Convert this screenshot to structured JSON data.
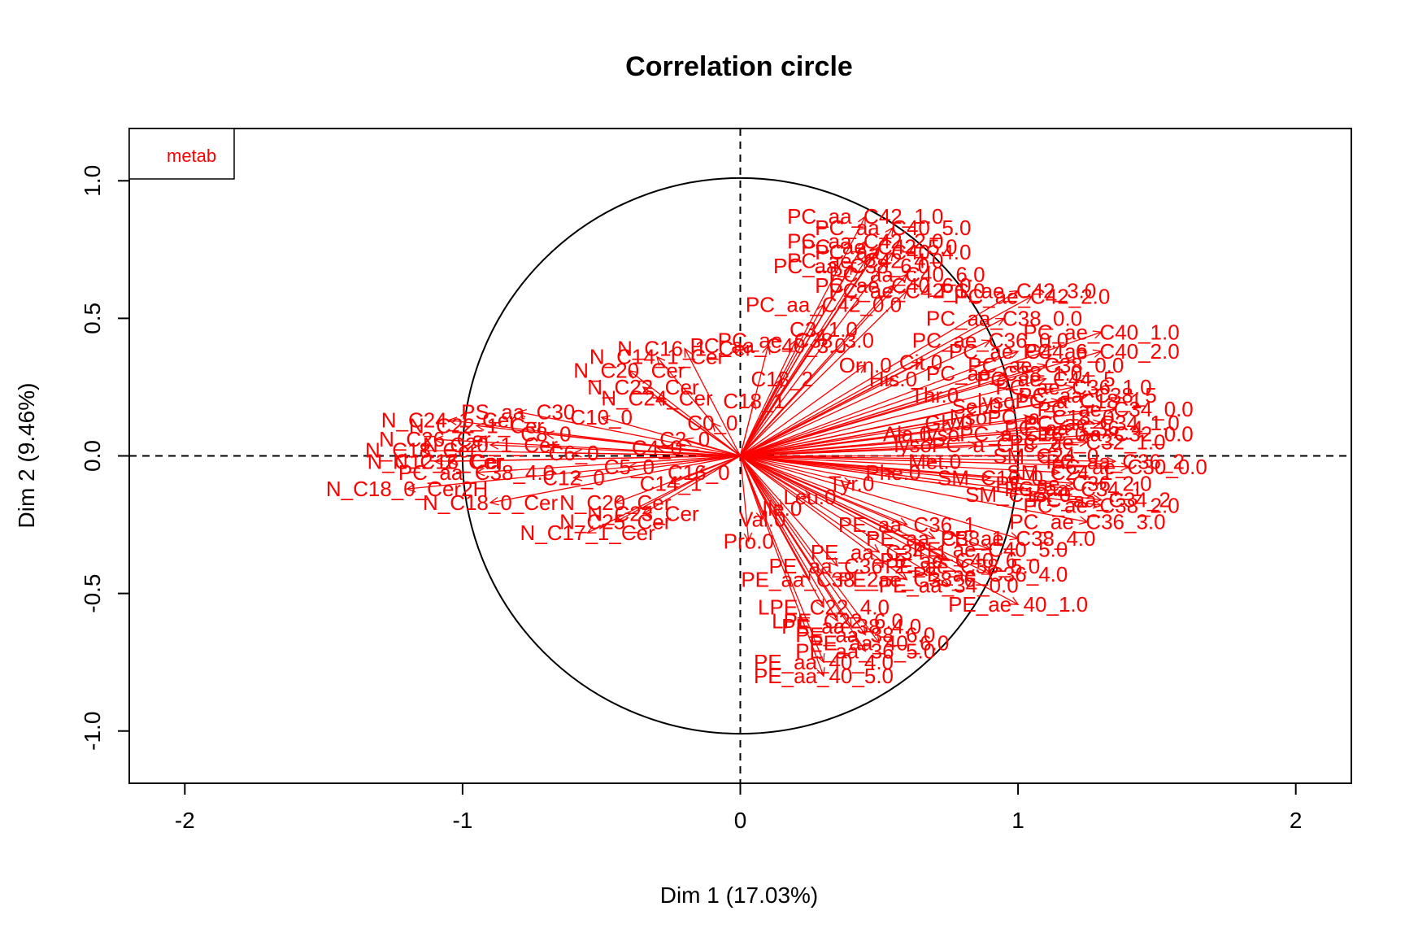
{
  "chart_data": {
    "type": "scatter",
    "title": "Correlation circle",
    "xlabel": "Dim 1 (17.03%)",
    "ylabel": "Dim 2 (9.46%)",
    "xlim": [
      -2.2,
      2.2
    ],
    "ylim": [
      -1.19,
      1.19
    ],
    "xticks": [
      "-2",
      "-1",
      "0",
      "1",
      "2"
    ],
    "yticks": [
      "-1.0",
      "-0.5",
      "0.0",
      "0.5",
      "1.0"
    ],
    "unit_circle": true,
    "reference_lines": [
      0,
      0
    ],
    "legend": {
      "position": "top-left",
      "entries": [
        {
          "name": "metab",
          "color": "#ff0000"
        }
      ]
    },
    "series": [
      {
        "name": "metab",
        "color": "#ff0000",
        "points": [
          {
            "label": "PC_aa_C42_1.0",
            "x": 0.45,
            "y": 0.87
          },
          {
            "label": "PC_aa_C40_5.0",
            "x": 0.55,
            "y": 0.83
          },
          {
            "label": "PC_aa_C42_2.0",
            "x": 0.45,
            "y": 0.78
          },
          {
            "label": "PC_ae_C42_5.0",
            "x": 0.5,
            "y": 0.76
          },
          {
            "label": "PC_aa_C40_4.0",
            "x": 0.55,
            "y": 0.74
          },
          {
            "label": "PC_ae_C42_4.0",
            "x": 0.45,
            "y": 0.71
          },
          {
            "label": "PC_aa_C38_6.0",
            "x": 0.4,
            "y": 0.69
          },
          {
            "label": "PC_aa_C40_6.0",
            "x": 0.6,
            "y": 0.66
          },
          {
            "label": "PC_ae_C40_6.0",
            "x": 0.55,
            "y": 0.62
          },
          {
            "label": "PC_ae_C42_1.0",
            "x": 0.6,
            "y": 0.6
          },
          {
            "label": "PC_aa_C42_0.0",
            "x": 0.3,
            "y": 0.55
          },
          {
            "label": "PC_ae_C42_3.0",
            "x": 1.0,
            "y": 0.6
          },
          {
            "label": "PC_ae_C42_2.0",
            "x": 1.05,
            "y": 0.58
          },
          {
            "label": "PC_aa_C38_0.0",
            "x": 0.95,
            "y": 0.5
          },
          {
            "label": "PC_ae_C40_1.0",
            "x": 1.3,
            "y": 0.45
          },
          {
            "label": "PC_ae_C36_0.0",
            "x": 0.9,
            "y": 0.42
          },
          {
            "label": "PC_ae_C40_2.0",
            "x": 1.3,
            "y": 0.38
          },
          {
            "label": "PC_ae_C38_0.0",
            "x": 1.1,
            "y": 0.33
          },
          {
            "label": "PC_ae_C38_1.0",
            "x": 0.95,
            "y": 0.3
          },
          {
            "label": "PC_ae_C36_1.0",
            "x": 1.2,
            "y": 0.25
          },
          {
            "label": "PC_ae_C34_0.0",
            "x": 1.35,
            "y": 0.17
          },
          {
            "label": "PC_ae_C34_1.0",
            "x": 1.3,
            "y": 0.12
          },
          {
            "label": "PC_aa_C32_0.0",
            "x": 1.35,
            "y": 0.08
          },
          {
            "label": "PC_ae_C32_1.0",
            "x": 1.25,
            "y": 0.05
          },
          {
            "label": "PC_ae_C30_0.0",
            "x": 1.4,
            "y": -0.04
          },
          {
            "label": "PC_ae_C36_2.0",
            "x": 1.2,
            "y": -0.1
          },
          {
            "label": "PC_ae_C38_2.0",
            "x": 1.3,
            "y": -0.18
          },
          {
            "label": "PC_ae_C36_3.0",
            "x": 1.25,
            "y": -0.24
          },
          {
            "label": "PE_ae_C38_4.0",
            "x": 1.0,
            "y": -0.3
          },
          {
            "label": "PE_ae_C40_5.0",
            "x": 0.9,
            "y": -0.34
          },
          {
            "label": "PE_ae_C38_5.0",
            "x": 0.8,
            "y": -0.4
          },
          {
            "label": "PE_ae_C36_4.0",
            "x": 0.9,
            "y": -0.43
          },
          {
            "label": "PE_aa_34_0.0",
            "x": 0.75,
            "y": -0.47
          },
          {
            "label": "PE_ae_40_1.0",
            "x": 1.0,
            "y": -0.54
          },
          {
            "label": "LPE_C22_4.0",
            "x": 0.3,
            "y": -0.55
          },
          {
            "label": "LPE_C22_6.0",
            "x": 0.35,
            "y": -0.6
          },
          {
            "label": "PE_aa_38_4.0",
            "x": 0.4,
            "y": -0.62
          },
          {
            "label": "PE_aa_38_6.0",
            "x": 0.45,
            "y": -0.65
          },
          {
            "label": "PE_aa_40_6.0",
            "x": 0.5,
            "y": -0.68
          },
          {
            "label": "PE_aa_36_5.0",
            "x": 0.45,
            "y": -0.71
          },
          {
            "label": "PE_aa_40_4.0",
            "x": 0.3,
            "y": -0.75
          },
          {
            "label": "PE_aa_40_5.0",
            "x": 0.3,
            "y": -0.8
          },
          {
            "label": "PC_aa_C40_3.0",
            "x": 0.1,
            "y": 0.4
          },
          {
            "label": "PC_ae_C38_3.0",
            "x": 0.2,
            "y": 0.42
          },
          {
            "label": "C3_1.0",
            "x": 0.3,
            "y": 0.46
          },
          {
            "label": "N_C14_1_Cer",
            "x": -0.3,
            "y": 0.36
          },
          {
            "label": "N_C16_1_Cer",
            "x": -0.2,
            "y": 0.39
          },
          {
            "label": "N_C20_Cer",
            "x": -0.4,
            "y": 0.31
          },
          {
            "label": "N_C22_Cer",
            "x": -0.35,
            "y": 0.25
          },
          {
            "label": "N_C24_Cer",
            "x": -0.3,
            "y": 0.21
          },
          {
            "label": "PS_aa_C30",
            "x": -0.8,
            "y": 0.16
          },
          {
            "label": "N_C24_1_Cer",
            "x": -1.05,
            "y": 0.13
          },
          {
            "label": "N_C22_1_Cer",
            "x": -0.95,
            "y": 0.11
          },
          {
            "label": "N_C26_Cer",
            "x": -1.1,
            "y": 0.06
          },
          {
            "label": "N_C20_1_Cer",
            "x": -0.9,
            "y": 0.04
          },
          {
            "label": "N_C18_Cer",
            "x": -1.15,
            "y": 0.02
          },
          {
            "label": "N_C16_Cer",
            "x": -1.05,
            "y": -0.02
          },
          {
            "label": "N_C12_2_Cer",
            "x": -1.1,
            "y": -0.02
          },
          {
            "label": "PC_aa_C38_4.0",
            "x": -0.95,
            "y": -0.06
          },
          {
            "label": "N_C18_0_Cer2H",
            "x": -1.2,
            "y": -0.12
          },
          {
            "label": "N_C18_0_Cer",
            "x": -0.9,
            "y": -0.17
          },
          {
            "label": "N_C20_Cer",
            "x": -0.45,
            "y": -0.17
          },
          {
            "label": "N_C25_Cer",
            "x": -0.45,
            "y": -0.24
          },
          {
            "label": "N_C23_Cer",
            "x": -0.35,
            "y": -0.21
          },
          {
            "label": "N_C17_1_Cer",
            "x": -0.55,
            "y": -0.28
          },
          {
            "label": "Pro.0",
            "x": 0.03,
            "y": -0.31
          },
          {
            "label": "Val.0",
            "x": 0.08,
            "y": -0.23
          },
          {
            "label": "Ile.0",
            "x": 0.15,
            "y": -0.19
          },
          {
            "label": "Leu.0",
            "x": 0.25,
            "y": -0.15
          },
          {
            "label": "Tyr.0",
            "x": 0.4,
            "y": -0.1
          },
          {
            "label": "Phe.0",
            "x": 0.55,
            "y": -0.06
          },
          {
            "label": "Met.0",
            "x": 0.7,
            "y": -0.02
          },
          {
            "label": "Ala.0",
            "x": 0.6,
            "y": 0.08
          },
          {
            "label": "Gly.0",
            "x": 0.75,
            "y": 0.12
          },
          {
            "label": "Ser.0",
            "x": 0.85,
            "y": 0.18
          },
          {
            "label": "Thr.0",
            "x": 0.7,
            "y": 0.22
          },
          {
            "label": "His.0",
            "x": 0.55,
            "y": 0.28
          },
          {
            "label": "Orn.0",
            "x": 0.45,
            "y": 0.33
          },
          {
            "label": "Cit.0",
            "x": 0.65,
            "y": 0.34
          },
          {
            "label": "SM_C16_0",
            "x": 0.9,
            "y": -0.08
          },
          {
            "label": "SM_C18_0",
            "x": 1.0,
            "y": -0.14
          },
          {
            "label": "SM_C24_0",
            "x": 1.1,
            "y": 0.0
          },
          {
            "label": "SM_C24_1",
            "x": 1.15,
            "y": -0.06
          },
          {
            "label": "lysoPC_a_C16_0",
            "x": 0.95,
            "y": 0.08
          },
          {
            "label": "lysoPC_a_C18_0",
            "x": 1.05,
            "y": 0.14
          },
          {
            "label": "lysoPC_a_C18_1",
            "x": 1.15,
            "y": 0.2
          },
          {
            "label": "lysoPC_a_C18_2",
            "x": 0.85,
            "y": 0.04
          },
          {
            "label": "PC_aa_C34_1",
            "x": 1.2,
            "y": -0.12
          },
          {
            "label": "PC_aa_C34_2",
            "x": 1.3,
            "y": -0.16
          },
          {
            "label": "PC_aa_C36_2",
            "x": 1.35,
            "y": -0.02
          },
          {
            "label": "PC_aa_C36_4",
            "x": 1.2,
            "y": 0.1
          },
          {
            "label": "PC_aa_C38_5",
            "x": 1.25,
            "y": 0.22
          },
          {
            "label": "PC_ae_C44_5",
            "x": 1.1,
            "y": 0.28
          },
          {
            "label": "PC_ae_C44_6",
            "x": 1.0,
            "y": 0.38
          },
          {
            "label": "C0_0",
            "x": -0.1,
            "y": 0.12
          },
          {
            "label": "C2_0",
            "x": -0.2,
            "y": 0.06
          },
          {
            "label": "C4_0",
            "x": -0.3,
            "y": 0.03
          },
          {
            "label": "C5_0",
            "x": -0.4,
            "y": -0.04
          },
          {
            "label": "C6_0",
            "x": -0.6,
            "y": 0.01
          },
          {
            "label": "C8_0",
            "x": -0.7,
            "y": 0.08
          },
          {
            "label": "C10_0",
            "x": -0.5,
            "y": 0.14
          },
          {
            "label": "C12_0",
            "x": -0.6,
            "y": -0.08
          },
          {
            "label": "C14_1",
            "x": -0.25,
            "y": -0.1
          },
          {
            "label": "C16_0",
            "x": -0.15,
            "y": -0.06
          },
          {
            "label": "C18_1",
            "x": 0.05,
            "y": 0.2
          },
          {
            "label": "C18_2",
            "x": 0.15,
            "y": 0.28
          },
          {
            "label": "PE_aa_C36_1",
            "x": 0.6,
            "y": -0.25
          },
          {
            "label": "PE_aa_C38_1",
            "x": 0.7,
            "y": -0.3
          },
          {
            "label": "PE_aa_C34_1",
            "x": 0.5,
            "y": -0.35
          },
          {
            "label": "PE_aa_C36_2",
            "x": 0.35,
            "y": -0.4
          },
          {
            "label": "PE_aa_C38_2",
            "x": 0.25,
            "y": -0.45
          },
          {
            "label": "PE_ae_C38_6",
            "x": 0.6,
            "y": -0.45
          },
          {
            "label": "PE_ae_C40_6",
            "x": 0.75,
            "y": -0.38
          }
        ]
      }
    ]
  }
}
